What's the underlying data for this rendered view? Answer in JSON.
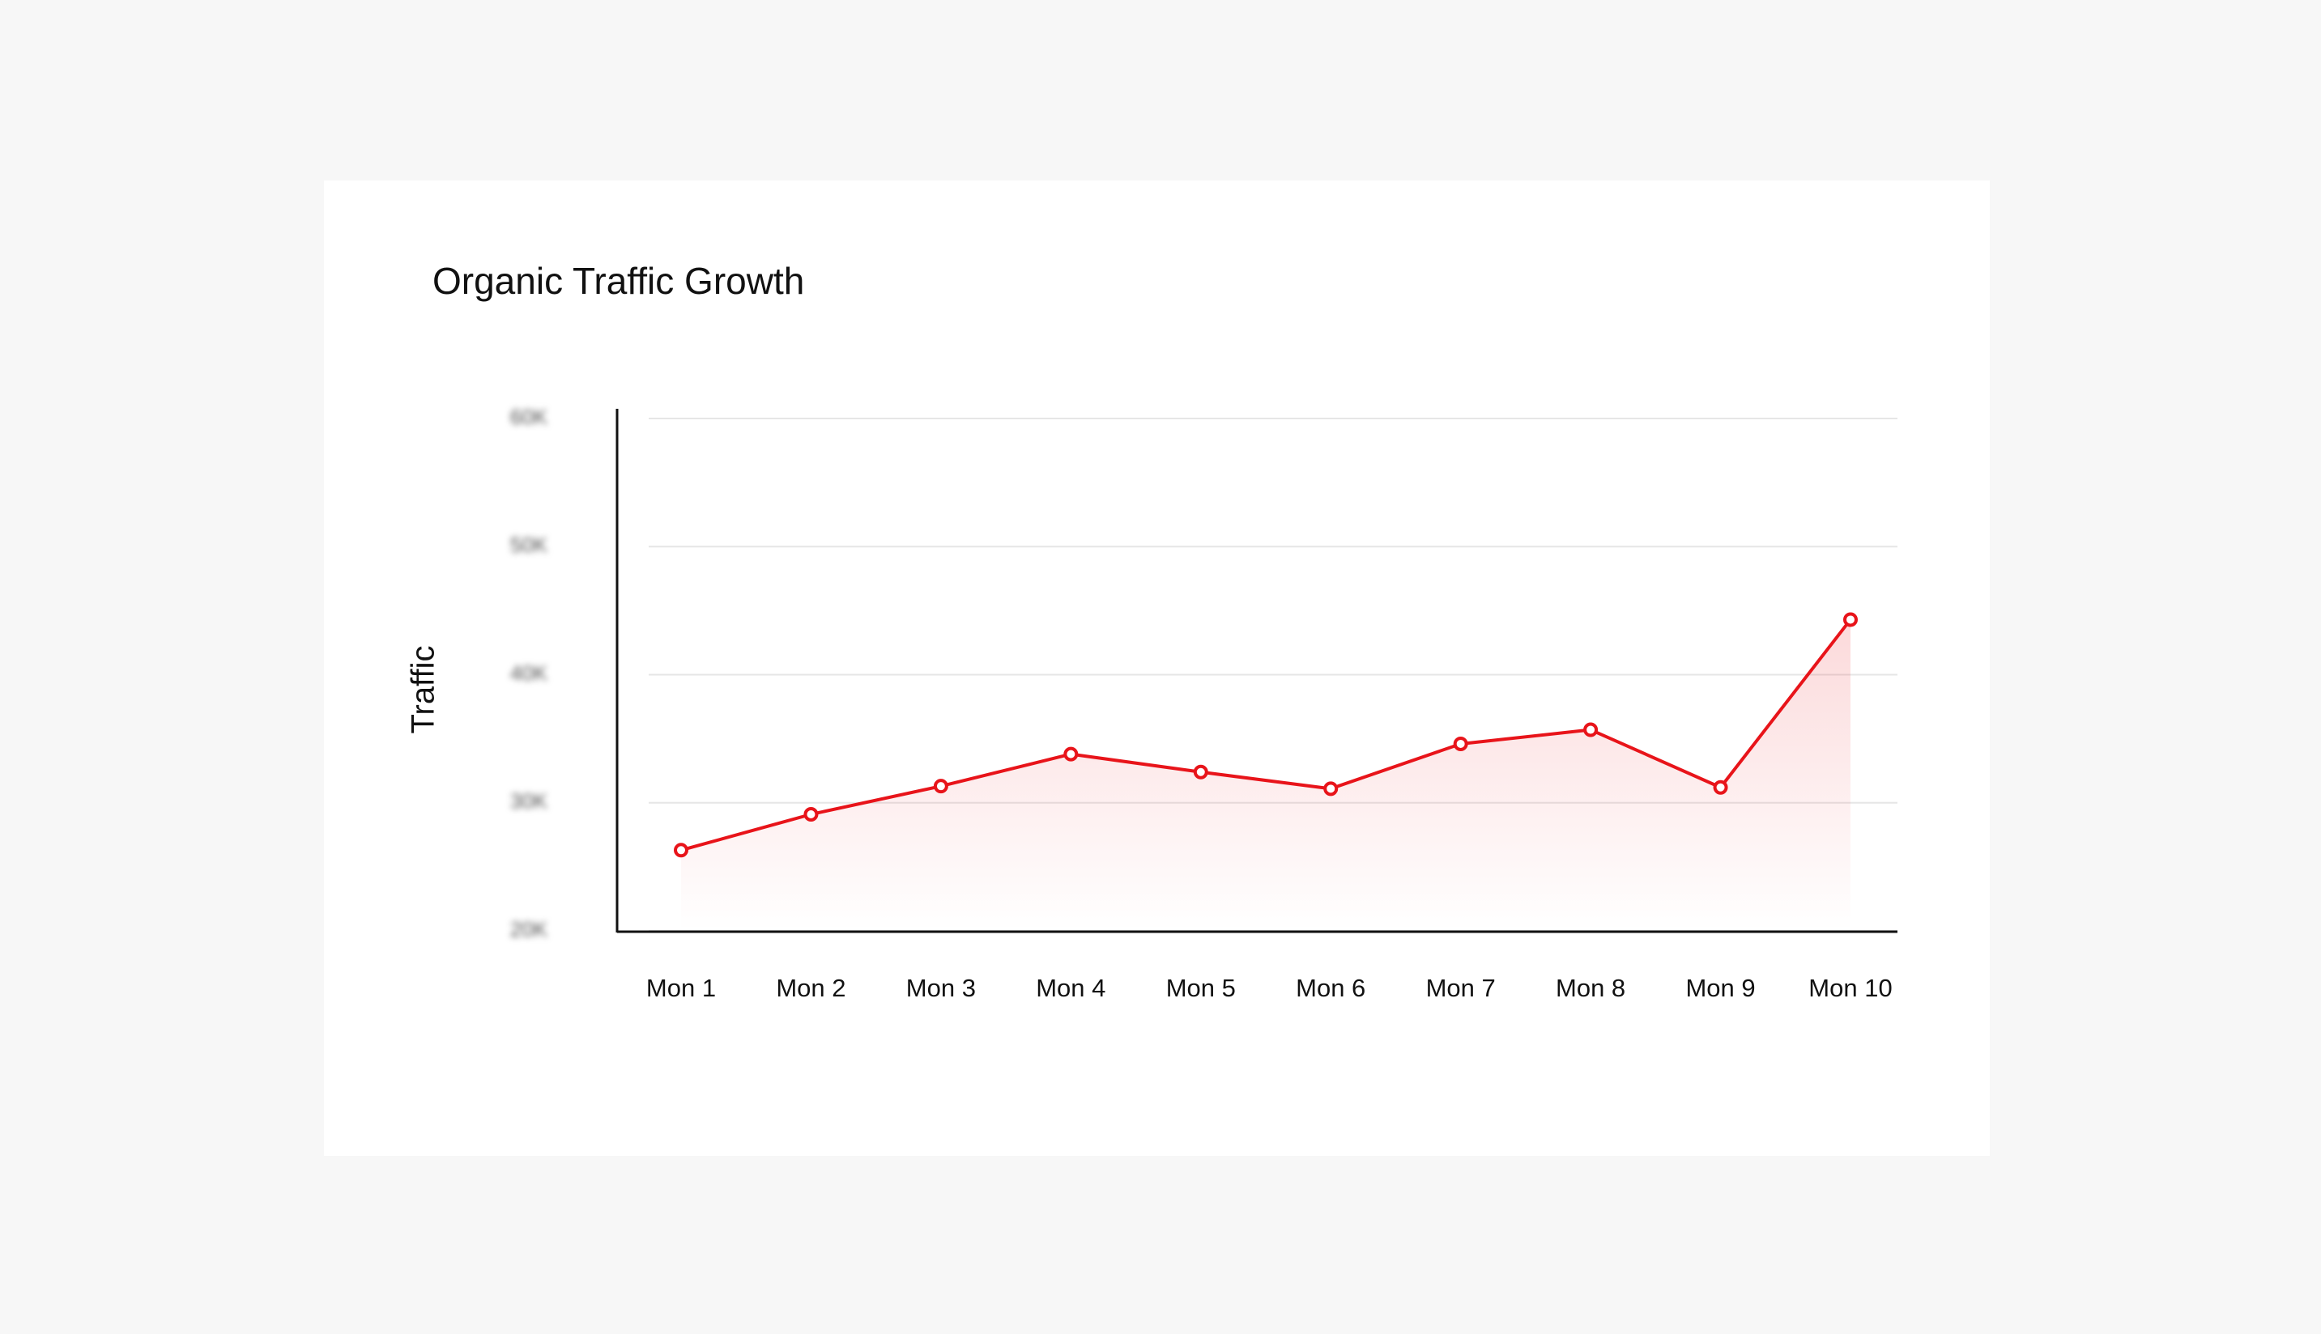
{
  "chart_data": {
    "type": "line",
    "title": "Organic Traffic Growth",
    "y_label": "Traffic",
    "categories": [
      "Mon 1",
      "Mon 2",
      "Mon 3",
      "Mon 4",
      "Mon 5",
      "Mon 6",
      "Mon 7",
      "Mon 8",
      "Mon 9",
      "Mon 10"
    ],
    "values": [
      26300,
      29100,
      31300,
      33800,
      32400,
      31100,
      34600,
      35700,
      31200,
      44300
    ],
    "color": "#e8141a",
    "ylim": [
      20000,
      60000
    ],
    "yticks": [
      {
        "value": 20000,
        "label": "20K"
      },
      {
        "value": 30000,
        "label": "30K"
      },
      {
        "value": 40000,
        "label": "40K"
      },
      {
        "value": 50000,
        "label": "50K"
      },
      {
        "value": 60000,
        "label": "60K"
      }
    ],
    "grid": true
  }
}
